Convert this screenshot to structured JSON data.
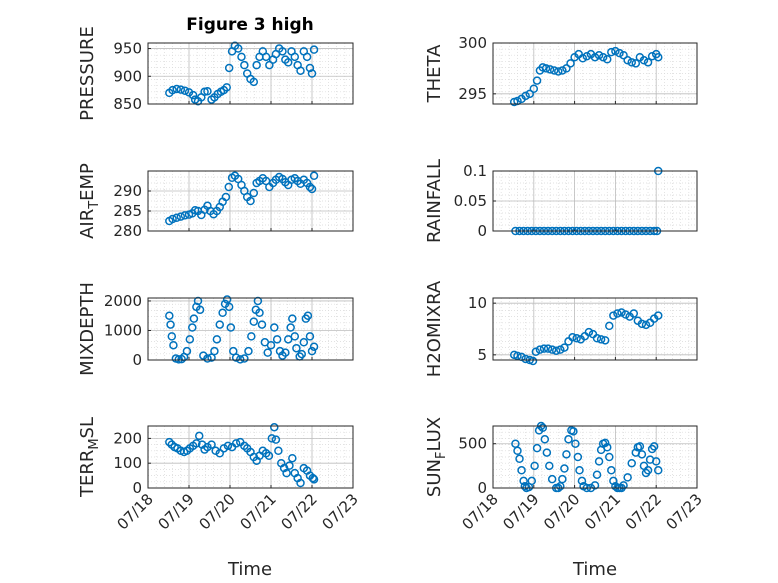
{
  "figure_title": "Figure 3 high",
  "x_label": "Time",
  "x_ticks": [
    "07/18",
    "07/19",
    "07/20",
    "07/21",
    "07/22",
    "07/23"
  ],
  "marker_color": "#0072BD",
  "chart_data": [
    {
      "type": "scatter",
      "title": "Figure 3 high",
      "ylabel": "PRESSURE",
      "ylim": [
        850,
        960
      ],
      "yticks": [
        "850",
        "900",
        "950"
      ],
      "xlim": [
        0,
        5
      ],
      "grid": true,
      "x": [
        0.52,
        0.6,
        0.7,
        0.8,
        0.9,
        1.0,
        1.1,
        1.15,
        1.22,
        1.3,
        1.38,
        1.45,
        1.55,
        1.62,
        1.7,
        1.78,
        1.85,
        1.92,
        1.98,
        2.05,
        2.12,
        2.2,
        2.28,
        2.35,
        2.42,
        2.5,
        2.58,
        2.65,
        2.72,
        2.8,
        2.88,
        2.96,
        3.05,
        3.12,
        3.2,
        3.28,
        3.35,
        3.42,
        3.5,
        3.58,
        3.65,
        3.72,
        3.8,
        3.88,
        3.95,
        4.0,
        4.05
      ],
      "y": [
        870,
        875,
        877,
        876,
        874,
        871,
        866,
        858,
        855,
        862,
        872,
        873,
        858,
        862,
        868,
        872,
        875,
        880,
        915,
        945,
        955,
        950,
        935,
        920,
        905,
        895,
        890,
        920,
        935,
        945,
        935,
        920,
        930,
        940,
        950,
        945,
        930,
        925,
        945,
        935,
        920,
        910,
        945,
        935,
        915,
        905,
        948
      ]
    },
    {
      "type": "scatter",
      "ylabel": "THETA",
      "ylim": [
        294,
        300
      ],
      "yticks": [
        "295",
        "300"
      ],
      "xlim": [
        0,
        5
      ],
      "grid": true,
      "x": [
        0.52,
        0.6,
        0.7,
        0.8,
        0.9,
        1.0,
        1.08,
        1.15,
        1.22,
        1.3,
        1.4,
        1.5,
        1.6,
        1.7,
        1.8,
        1.9,
        2.0,
        2.1,
        2.2,
        2.3,
        2.4,
        2.5,
        2.6,
        2.7,
        2.8,
        2.9,
        3.0,
        3.1,
        3.2,
        3.3,
        3.4,
        3.5,
        3.6,
        3.7,
        3.8,
        3.9,
        4.0,
        4.05
      ],
      "y": [
        294.2,
        294.3,
        294.5,
        294.8,
        295.0,
        295.5,
        296.3,
        297.3,
        297.6,
        297.5,
        297.4,
        297.3,
        297.2,
        297.3,
        297.5,
        298.0,
        298.6,
        298.9,
        298.5,
        298.7,
        298.9,
        298.6,
        298.8,
        298.6,
        298.4,
        299.1,
        299.2,
        299.0,
        298.8,
        298.3,
        298.1,
        298.0,
        298.6,
        298.3,
        298.1,
        298.7,
        298.9,
        298.6
      ]
    },
    {
      "type": "scatter",
      "ylabel": "AIR_TEMP",
      "ylim": [
        280,
        295
      ],
      "yticks": [
        "280",
        "285",
        "290"
      ],
      "xlim": [
        0,
        5
      ],
      "grid": true,
      "x": [
        0.52,
        0.6,
        0.7,
        0.8,
        0.9,
        1.0,
        1.08,
        1.15,
        1.22,
        1.3,
        1.38,
        1.45,
        1.52,
        1.6,
        1.68,
        1.75,
        1.82,
        1.9,
        1.97,
        2.05,
        2.12,
        2.2,
        2.28,
        2.35,
        2.42,
        2.5,
        2.58,
        2.65,
        2.72,
        2.8,
        2.88,
        2.96,
        3.05,
        3.12,
        3.2,
        3.28,
        3.35,
        3.42,
        3.5,
        3.58,
        3.65,
        3.72,
        3.8,
        3.88,
        3.95,
        4.0,
        4.05
      ],
      "y": [
        282.5,
        283.0,
        283.3,
        283.6,
        283.9,
        284.1,
        284.4,
        285.2,
        285.0,
        284.0,
        285.3,
        286.3,
        285.0,
        284.2,
        285.0,
        286.0,
        287.3,
        288.5,
        291.0,
        293.3,
        293.8,
        293.0,
        291.5,
        290.0,
        288.5,
        287.5,
        289.5,
        292.0,
        292.5,
        293.2,
        292.5,
        291.0,
        292.0,
        292.8,
        293.5,
        293.0,
        292.2,
        291.5,
        292.8,
        293.2,
        292.5,
        291.8,
        292.8,
        292.0,
        291.0,
        290.5,
        293.8
      ]
    },
    {
      "type": "scatter",
      "ylabel": "RAINFALL",
      "ylim": [
        0,
        0.1
      ],
      "yticks": [
        "0",
        "0.05",
        "0.1"
      ],
      "xlim": [
        0,
        5
      ],
      "grid": true,
      "x": [
        0.55,
        0.65,
        0.75,
        0.85,
        0.95,
        1.05,
        1.15,
        1.25,
        1.35,
        1.45,
        1.55,
        1.65,
        1.75,
        1.85,
        1.95,
        2.05,
        2.15,
        2.25,
        2.35,
        2.45,
        2.55,
        2.65,
        2.75,
        2.85,
        2.95,
        3.05,
        3.15,
        3.25,
        3.35,
        3.45,
        3.55,
        3.65,
        3.75,
        3.85,
        3.95,
        4.02,
        4.05
      ],
      "y": [
        0,
        0,
        0,
        0,
        0,
        0,
        0,
        0,
        0,
        0,
        0,
        0,
        0,
        0,
        0,
        0,
        0,
        0,
        0,
        0,
        0,
        0,
        0,
        0,
        0,
        0,
        0,
        0,
        0,
        0,
        0,
        0,
        0,
        0,
        0,
        0,
        0.1
      ]
    },
    {
      "type": "scatter",
      "ylabel": "MIXDEPTH",
      "ylim": [
        0,
        2100
      ],
      "yticks": [
        "0",
        "1000",
        "2000"
      ],
      "xlim": [
        0,
        5
      ],
      "grid": true,
      "x": [
        0.52,
        0.55,
        0.58,
        0.62,
        0.68,
        0.75,
        0.82,
        0.88,
        0.95,
        1.02,
        1.08,
        1.12,
        1.18,
        1.22,
        1.27,
        1.35,
        1.45,
        1.55,
        1.62,
        1.68,
        1.75,
        1.82,
        1.88,
        1.93,
        1.98,
        2.02,
        2.08,
        2.15,
        2.25,
        2.35,
        2.45,
        2.52,
        2.58,
        2.63,
        2.68,
        2.72,
        2.78,
        2.85,
        2.92,
        3.0,
        3.08,
        3.15,
        3.22,
        3.28,
        3.35,
        3.42,
        3.48,
        3.52,
        3.58,
        3.62,
        3.7,
        3.75,
        3.8,
        3.85,
        3.9,
        3.95,
        4.0,
        4.05
      ],
      "y": [
        1500,
        1200,
        800,
        500,
        50,
        20,
        30,
        100,
        300,
        700,
        1100,
        1400,
        1800,
        2000,
        1700,
        150,
        50,
        80,
        300,
        700,
        1200,
        1600,
        1900,
        2050,
        1800,
        1100,
        300,
        80,
        20,
        50,
        300,
        800,
        1300,
        1700,
        2000,
        1600,
        1200,
        600,
        250,
        500,
        1100,
        700,
        300,
        150,
        250,
        700,
        1100,
        1400,
        800,
        400,
        120,
        200,
        600,
        1400,
        1500,
        800,
        300,
        450
      ]
    },
    {
      "type": "scatter",
      "ylabel": "H2OMIXRA",
      "ylim": [
        4.5,
        10.5
      ],
      "yticks": [
        "5",
        "10"
      ],
      "xlim": [
        0,
        5
      ],
      "grid": true,
      "x": [
        0.52,
        0.6,
        0.7,
        0.8,
        0.9,
        0.98,
        1.05,
        1.15,
        1.25,
        1.35,
        1.45,
        1.55,
        1.65,
        1.75,
        1.85,
        1.95,
        2.05,
        2.15,
        2.25,
        2.35,
        2.45,
        2.55,
        2.65,
        2.75,
        2.85,
        2.95,
        3.05,
        3.15,
        3.25,
        3.35,
        3.45,
        3.55,
        3.65,
        3.75,
        3.85,
        3.95,
        4.05
      ],
      "y": [
        5.0,
        4.9,
        4.8,
        4.6,
        4.5,
        4.4,
        5.3,
        5.5,
        5.6,
        5.6,
        5.5,
        5.4,
        5.5,
        5.7,
        6.3,
        6.7,
        6.6,
        6.5,
        6.8,
        7.2,
        7.0,
        6.6,
        6.5,
        6.4,
        7.8,
        8.8,
        9.0,
        9.1,
        8.9,
        8.7,
        9.0,
        8.3,
        8.0,
        7.9,
        8.1,
        8.5,
        8.8
      ]
    },
    {
      "type": "scatter",
      "ylabel": "TERR_MSL",
      "ylim": [
        0,
        250
      ],
      "yticks": [
        "0",
        "100",
        "200"
      ],
      "xlim": [
        0,
        5
      ],
      "grid": true,
      "x": [
        0.52,
        0.58,
        0.65,
        0.72,
        0.8,
        0.88,
        0.95,
        1.02,
        1.1,
        1.18,
        1.25,
        1.32,
        1.38,
        1.45,
        1.55,
        1.65,
        1.75,
        1.85,
        1.95,
        2.05,
        2.15,
        2.25,
        2.35,
        2.42,
        2.5,
        2.58,
        2.65,
        2.72,
        2.8,
        2.88,
        2.95,
        3.02,
        3.08,
        3.12,
        3.18,
        3.25,
        3.32,
        3.38,
        3.45,
        3.52,
        3.58,
        3.65,
        3.72,
        3.8,
        3.88,
        3.95,
        4.02,
        4.05
      ],
      "y": [
        185,
        175,
        165,
        160,
        150,
        145,
        150,
        160,
        170,
        180,
        210,
        175,
        155,
        165,
        175,
        150,
        140,
        160,
        170,
        165,
        180,
        185,
        170,
        160,
        145,
        125,
        110,
        130,
        150,
        140,
        130,
        200,
        245,
        195,
        150,
        100,
        80,
        60,
        90,
        120,
        60,
        40,
        20,
        80,
        70,
        50,
        40,
        35
      ]
    },
    {
      "type": "scatter",
      "ylabel": "SUN_FLUX",
      "ylim": [
        0,
        700
      ],
      "yticks": [
        "0",
        "500"
      ],
      "xlim": [
        0,
        5
      ],
      "grid": true,
      "x": [
        0.55,
        0.6,
        0.65,
        0.7,
        0.75,
        0.78,
        0.82,
        0.88,
        0.95,
        1.02,
        1.08,
        1.13,
        1.18,
        1.22,
        1.27,
        1.32,
        1.38,
        1.45,
        1.55,
        1.6,
        1.65,
        1.7,
        1.75,
        1.8,
        1.85,
        1.92,
        1.97,
        2.02,
        2.08,
        2.12,
        2.18,
        2.22,
        2.3,
        2.4,
        2.5,
        2.55,
        2.6,
        2.65,
        2.7,
        2.75,
        2.8,
        2.85,
        2.9,
        2.95,
        3.0,
        3.05,
        3.1,
        3.15,
        3.2,
        3.3,
        3.4,
        3.5,
        3.55,
        3.6,
        3.65,
        3.7,
        3.75,
        3.8,
        3.85,
        3.9,
        3.95,
        4.0,
        4.05
      ],
      "y": [
        500,
        420,
        330,
        200,
        80,
        20,
        0,
        10,
        80,
        250,
        450,
        650,
        700,
        680,
        550,
        400,
        250,
        100,
        0,
        0,
        20,
        100,
        220,
        380,
        550,
        650,
        640,
        500,
        350,
        200,
        80,
        20,
        0,
        0,
        30,
        150,
        300,
        430,
        500,
        510,
        460,
        350,
        200,
        80,
        20,
        0,
        0,
        0,
        30,
        120,
        280,
        400,
        460,
        470,
        380,
        250,
        170,
        200,
        320,
        440,
        470,
        300,
        200
      ]
    }
  ]
}
